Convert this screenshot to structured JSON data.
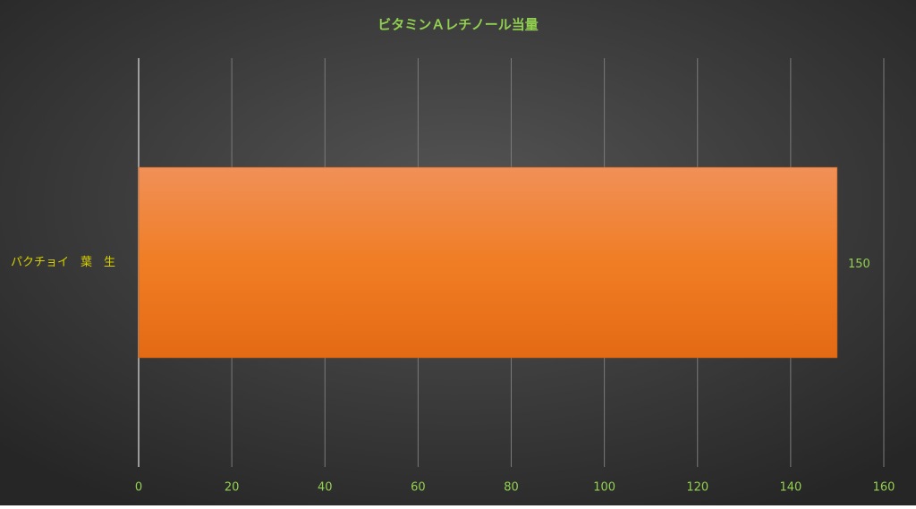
{
  "chart_data": {
    "type": "barh",
    "title": "ビタミンＡレチノール当量",
    "categories": [
      "パクチョイ　葉　生"
    ],
    "values": [
      150
    ],
    "color": "#f07f2e",
    "xlim": [
      0,
      160
    ],
    "xticks": [
      0,
      20,
      40,
      60,
      80,
      100,
      120,
      140,
      160
    ],
    "grid": true
  }
}
